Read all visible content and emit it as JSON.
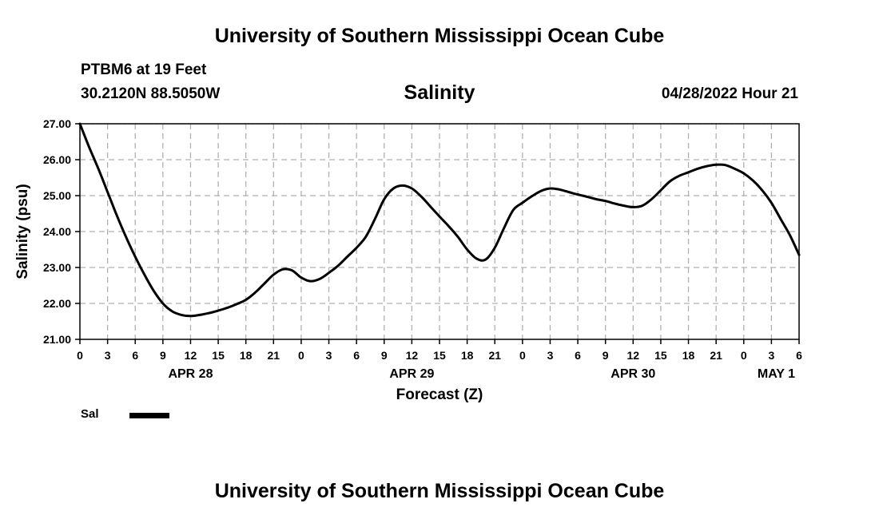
{
  "header": {
    "title": "University of Southern Mississippi Ocean Cube",
    "station": "PTBM6 at 19 Feet",
    "coordinates": "30.2120N  88.5050W",
    "datetime": "04/28/2022 Hour 21"
  },
  "footer": {
    "title": "University of Southern Mississippi Ocean Cube"
  },
  "legend": {
    "label": "Sal"
  },
  "chart_data": {
    "type": "line",
    "title": "Salinity",
    "xlabel": "Forecast (Z)",
    "ylabel": "Salinity (psu)",
    "xlim": [
      0,
      78
    ],
    "ylim": [
      21,
      27
    ],
    "grid": true,
    "legend_position": "bottom-left",
    "y_ticks": [
      {
        "value": 21,
        "label": "21.00"
      },
      {
        "value": 22,
        "label": "22.00"
      },
      {
        "value": 23,
        "label": "23.00"
      },
      {
        "value": 24,
        "label": "24.00"
      },
      {
        "value": 25,
        "label": "25.00"
      },
      {
        "value": 26,
        "label": "26.00"
      },
      {
        "value": 27,
        "label": "27.00"
      }
    ],
    "x_ticks": [
      {
        "value": 0,
        "label": "0"
      },
      {
        "value": 3,
        "label": "3"
      },
      {
        "value": 6,
        "label": "6"
      },
      {
        "value": 9,
        "label": "9"
      },
      {
        "value": 12,
        "label": "12"
      },
      {
        "value": 15,
        "label": "15"
      },
      {
        "value": 18,
        "label": "18"
      },
      {
        "value": 21,
        "label": "21"
      },
      {
        "value": 24,
        "label": "0"
      },
      {
        "value": 27,
        "label": "3"
      },
      {
        "value": 30,
        "label": "6"
      },
      {
        "value": 33,
        "label": "9"
      },
      {
        "value": 36,
        "label": "12"
      },
      {
        "value": 39,
        "label": "15"
      },
      {
        "value": 42,
        "label": "18"
      },
      {
        "value": 45,
        "label": "21"
      },
      {
        "value": 48,
        "label": "0"
      },
      {
        "value": 51,
        "label": "3"
      },
      {
        "value": 54,
        "label": "6"
      },
      {
        "value": 57,
        "label": "9"
      },
      {
        "value": 60,
        "label": "12"
      },
      {
        "value": 63,
        "label": "15"
      },
      {
        "value": 66,
        "label": "18"
      },
      {
        "value": 69,
        "label": "21"
      },
      {
        "value": 72,
        "label": "0"
      },
      {
        "value": 75,
        "label": "3"
      },
      {
        "value": 78,
        "label": "6"
      }
    ],
    "date_labels": [
      {
        "value": 12,
        "label": "APR 28"
      },
      {
        "value": 36,
        "label": "APR 29"
      },
      {
        "value": 60,
        "label": "APR 30"
      },
      {
        "value": 78,
        "label": "MAY 1"
      }
    ],
    "series": [
      {
        "name": "Sal",
        "x": [
          0,
          1,
          2,
          3,
          4,
          5,
          6,
          7,
          8,
          9,
          10,
          11,
          12,
          13,
          14,
          15,
          16,
          17,
          18,
          19,
          20,
          21,
          22,
          23,
          24,
          25,
          26,
          27,
          28,
          29,
          30,
          31,
          32,
          33,
          34,
          35,
          36,
          37,
          38,
          39,
          40,
          41,
          42,
          43,
          44,
          45,
          46,
          47,
          48,
          49,
          50,
          51,
          52,
          53,
          54,
          55,
          56,
          57,
          58,
          59,
          60,
          61,
          62,
          63,
          64,
          65,
          66,
          67,
          68,
          69,
          70,
          71,
          72,
          73,
          74,
          75,
          76,
          77,
          78
        ],
        "values": [
          27.0,
          26.35,
          25.75,
          25.1,
          24.45,
          23.85,
          23.3,
          22.8,
          22.35,
          22.0,
          21.78,
          21.68,
          21.65,
          21.68,
          21.73,
          21.8,
          21.88,
          21.98,
          22.1,
          22.3,
          22.55,
          22.8,
          22.95,
          22.92,
          22.72,
          22.62,
          22.68,
          22.85,
          23.05,
          23.3,
          23.55,
          23.85,
          24.35,
          24.9,
          25.2,
          25.28,
          25.2,
          24.98,
          24.7,
          24.42,
          24.15,
          23.85,
          23.5,
          23.25,
          23.22,
          23.55,
          24.1,
          24.6,
          24.8,
          24.98,
          25.13,
          25.2,
          25.17,
          25.1,
          25.03,
          24.97,
          24.9,
          24.85,
          24.78,
          24.72,
          24.68,
          24.72,
          24.9,
          25.15,
          25.4,
          25.55,
          25.65,
          25.75,
          25.82,
          25.86,
          25.85,
          25.75,
          25.62,
          25.42,
          25.15,
          24.8,
          24.35,
          23.9,
          23.35
        ]
      }
    ]
  }
}
